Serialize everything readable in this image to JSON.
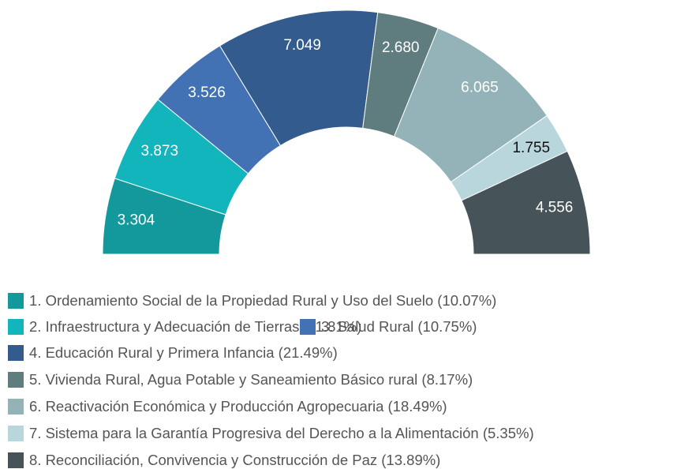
{
  "chart_data": {
    "type": "pie",
    "categories": [
      "1. Ordenamiento Social de la Propiedad Rural y Uso del Suelo (10.07%)",
      "2. Infraestructura y Adecuación de Tierras (11.81%)",
      "3. Salud Rural (10.75%)",
      "4. Educación Rural y Primera Infancia (21.49%)",
      "5. Vivienda Rural, Agua Potable y Saneamiento Básico rural (8.17%)",
      "6. Reactivación Económica y Producción Agropecuaria (18.49%)",
      "7. Sistema para la Garantía Progresiva del Derecho a la Alimentación (5.35%)",
      "8. Reconciliación, Convivencia y Construcción de Paz (13.89%)"
    ],
    "values": [
      3304,
      3873,
      3526,
      7049,
      2680,
      6065,
      1755,
      4556
    ],
    "value_labels": [
      "3.304",
      "3.873",
      "3.526",
      "7.049",
      "2.680",
      "6.065",
      "1.755",
      "4.556"
    ],
    "colors": [
      "#13999b",
      "#12b5bb",
      "#4272b3",
      "#335b8e",
      "#5f7d7f",
      "#93b3b8",
      "#b8d6db",
      "#46545a"
    ]
  }
}
